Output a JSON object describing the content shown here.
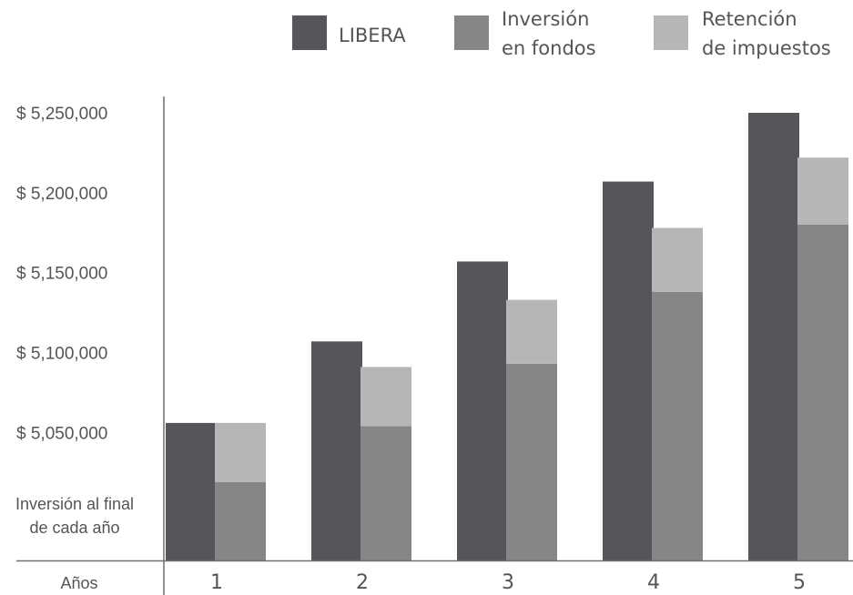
{
  "chart_data": {
    "type": "bar",
    "categories": [
      "1",
      "2",
      "3",
      "4",
      "5"
    ],
    "x_axis_label": "Años",
    "y_axis_note": [
      "Inversión al final",
      "de cada año"
    ],
    "y_ticks": [
      "$ 5,050,000",
      "$ 5,100,000",
      "$ 5,150,000",
      "$ 5,200,000",
      "$ 5,250,000"
    ],
    "y_tick_values": [
      5050000,
      5100000,
      5150000,
      5200000,
      5250000
    ],
    "ylim": [
      4970000,
      5250000
    ],
    "series": [
      {
        "name": "LIBERA",
        "color": "#56565a",
        "values": [
          5056000,
          5107000,
          5157000,
          5207000,
          5250000
        ],
        "stack": "a"
      },
      {
        "name": "Inversión en fondos",
        "color": "#878587",
        "values": [
          5019000,
          5054000,
          5093000,
          5138000,
          5180000
        ],
        "stack": "b"
      },
      {
        "name": "Retención de impuestos",
        "color": "#b6b5b7",
        "values": [
          37000,
          37000,
          40000,
          40000,
          42000
        ],
        "stack": "b"
      }
    ],
    "legend": {
      "placement": "top-right",
      "entries": [
        {
          "lines": [
            "LIBERA"
          ],
          "color": "#56565a"
        },
        {
          "lines": [
            "Inversión",
            "en fondos"
          ],
          "color": "#878587"
        },
        {
          "lines": [
            "Retención",
            "de impuestos"
          ],
          "color": "#b6b5b7"
        }
      ]
    },
    "grid": false
  }
}
